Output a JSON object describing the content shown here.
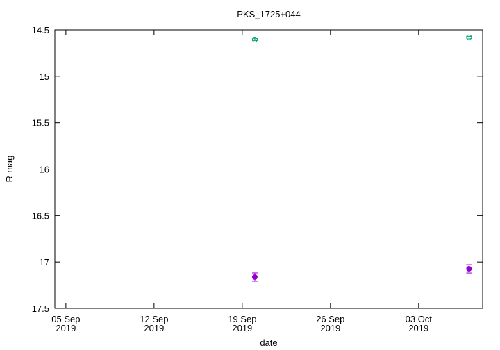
{
  "chart_data": {
    "type": "scatter",
    "title": "PKS_1725+044",
    "x_label": "date",
    "y_label": "R-mag",
    "series": [
      {
        "color": "#009e73",
        "marker": "open-circle",
        "x": [
          "2019-09-20",
          "2019-10-07"
        ],
        "values": [
          14.605,
          14.58
        ],
        "errors": [
          0.01,
          0.01
        ]
      },
      {
        "color": "#9400d3",
        "marker": "filled-circle",
        "x": [
          "2019-09-20",
          "2019-10-07"
        ],
        "values": [
          17.163,
          17.074
        ],
        "errors": [
          0.045,
          0.045
        ]
      }
    ],
    "xlim": [
      "2019-09-04T03:00",
      "2019-10-08T02:00"
    ],
    "xticks": [
      {
        "value": "2019-09-05",
        "label": "05 Sep\n2019"
      },
      {
        "value": "2019-09-12",
        "label": "12 Sep\n2019"
      },
      {
        "value": "2019-09-19",
        "label": "19 Sep\n2019"
      },
      {
        "value": "2019-09-26",
        "label": "26 Sep\n2019"
      },
      {
        "value": "2019-10-03",
        "label": "03 Oct\n2019"
      }
    ],
    "ylim": [
      14.5,
      17.5
    ],
    "y_inverted": true,
    "yticks": [
      "14.5",
      "15",
      "15.5",
      "16",
      "16.5",
      "17",
      "17.5"
    ],
    "grid": false
  }
}
